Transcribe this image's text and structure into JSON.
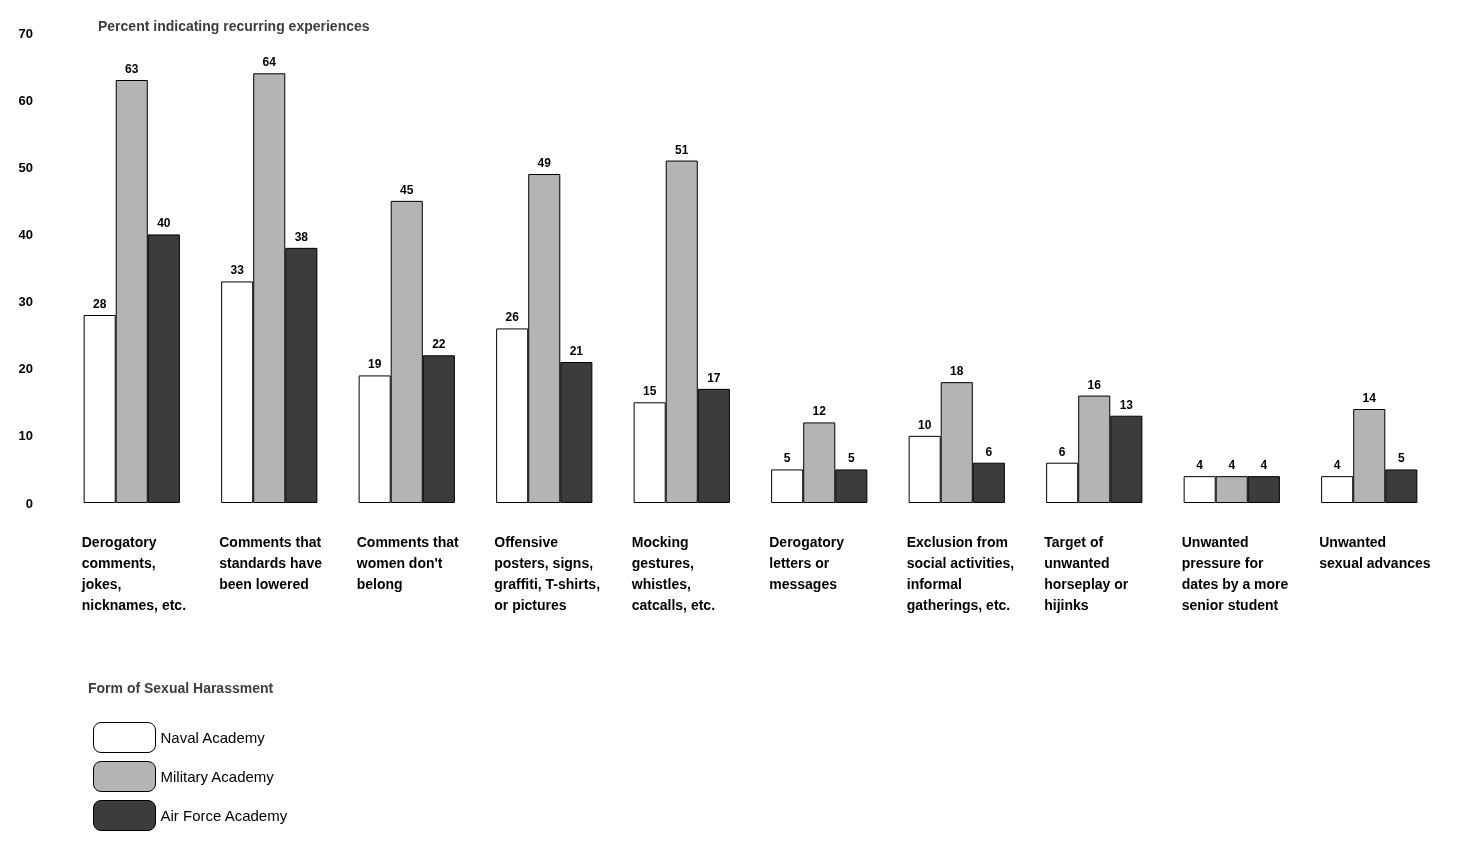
{
  "chart_data": {
    "type": "bar",
    "ylabel": "Percent indicating recurring experiences",
    "xlabel": "Form of Sexual Harassment",
    "categories": [
      "Derogatory comments, jokes, nicknames, etc.",
      "Comments that standards have been lowered",
      "Comments that women don't belong",
      "Offensive posters, signs, graffiti, T-shirts, or pictures",
      "Mocking gestures, whistles, catcalls, etc.",
      "Derogatory letters or messages",
      "Exclusion from social activities, informal gatherings, etc.",
      "Target of unwanted horseplay or hijinks",
      "Unwanted pressure for dates by a more senior student",
      "Unwanted sexual advances"
    ],
    "series": [
      {
        "name": "Naval Academy",
        "color": "#ffffff",
        "values": [
          28,
          33,
          19,
          26,
          15,
          5,
          10,
          6,
          4,
          4
        ]
      },
      {
        "name": "Military Academy",
        "color": "#b4b4b4",
        "values": [
          63,
          64,
          45,
          49,
          51,
          12,
          18,
          16,
          4,
          14
        ]
      },
      {
        "name": "Air Force Academy",
        "color": "#3c3c3c",
        "values": [
          40,
          38,
          22,
          21,
          17,
          5,
          6,
          13,
          4,
          5
        ]
      }
    ],
    "ylim": [
      0,
      70
    ],
    "yticks": [
      0,
      10,
      20,
      30,
      40,
      50,
      60,
      70
    ],
    "grid": false,
    "legend": "bottom left",
    "data_labels": true
  }
}
